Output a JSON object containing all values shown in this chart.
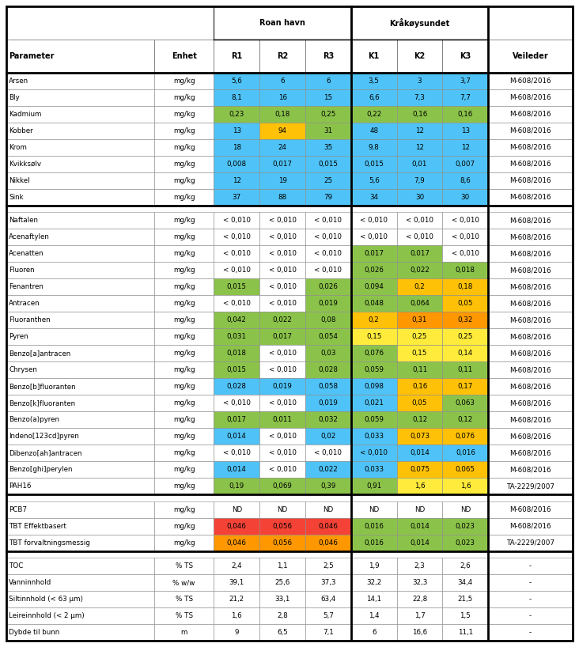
{
  "headers_sub": [
    "Parameter",
    "Enhet",
    "R1",
    "R2",
    "R3",
    "K1",
    "K2",
    "K3",
    "Veileder"
  ],
  "rows": [
    [
      "Arsen",
      "mg/kg",
      "5,6",
      "6",
      "6",
      "3,5",
      "3",
      "3,7",
      "M-608/2016"
    ],
    [
      "Bly",
      "mg/kg",
      "8,1",
      "16",
      "15",
      "6,6",
      "7,3",
      "7,7",
      "M-608/2016"
    ],
    [
      "Kadmium",
      "mg/kg",
      "0,23",
      "0,18",
      "0,25",
      "0,22",
      "0,16",
      "0,16",
      "M-608/2016"
    ],
    [
      "Kobber",
      "mg/kg",
      "13",
      "94",
      "31",
      "48",
      "12",
      "13",
      "M-608/2016"
    ],
    [
      "Krom",
      "mg/kg",
      "18",
      "24",
      "35",
      "9,8",
      "12",
      "12",
      "M-608/2016"
    ],
    [
      "Kvikksølv",
      "mg/kg",
      "0,008",
      "0,017",
      "0,015",
      "0,015",
      "0,01",
      "0,007",
      "M-608/2016"
    ],
    [
      "Nikkel",
      "mg/kg",
      "12",
      "19",
      "25",
      "5,6",
      "7,9",
      "8,6",
      "M-608/2016"
    ],
    [
      "Sink",
      "mg/kg",
      "37",
      "88",
      "79",
      "34",
      "30",
      "30",
      "M-608/2016"
    ],
    [
      "Naftalen",
      "mg/kg",
      "< 0,010",
      "< 0,010",
      "< 0,010",
      "< 0,010",
      "< 0,010",
      "< 0,010",
      "M-608/2016"
    ],
    [
      "Acenaftylen",
      "mg/kg",
      "< 0,010",
      "< 0,010",
      "< 0,010",
      "< 0,010",
      "< 0,010",
      "< 0,010",
      "M-608/2016"
    ],
    [
      "Acenatten",
      "mg/kg",
      "< 0,010",
      "< 0,010",
      "< 0,010",
      "0,017",
      "0,017",
      "< 0,010",
      "M-608/2016"
    ],
    [
      "Fluoren",
      "mg/kg",
      "< 0,010",
      "< 0,010",
      "< 0,010",
      "0,026",
      "0,022",
      "0,018",
      "M-608/2016"
    ],
    [
      "Fenantren",
      "mg/kg",
      "0,015",
      "< 0,010",
      "0,026",
      "0,094",
      "0,2",
      "0,18",
      "M-608/2016"
    ],
    [
      "Antracen",
      "mg/kg",
      "< 0,010",
      "< 0,010",
      "0,019",
      "0,048",
      "0,064",
      "0,05",
      "M-608/2016"
    ],
    [
      "Fluoranthen",
      "mg/kg",
      "0,042",
      "0,022",
      "0,08",
      "0,2",
      "0,31",
      "0,32",
      "M-608/2016"
    ],
    [
      "Pyren",
      "mg/kg",
      "0,031",
      "0,017",
      "0,054",
      "0,15",
      "0,25",
      "0,25",
      "M-608/2016"
    ],
    [
      "Benzo[a]antracen",
      "mg/kg",
      "0,018",
      "< 0,010",
      "0,03",
      "0,076",
      "0,15",
      "0,14",
      "M-608/2016"
    ],
    [
      "Chrysen",
      "mg/kg",
      "0,015",
      "< 0,010",
      "0,028",
      "0,059",
      "0,11",
      "0,11",
      "M-608/2016"
    ],
    [
      "Benzo[b]fluoranten",
      "mg/kg",
      "0,028",
      "0,019",
      "0,058",
      "0,098",
      "0,16",
      "0,17",
      "M-608/2016"
    ],
    [
      "Benzo[k]fluoranten",
      "mg/kg",
      "< 0,010",
      "< 0,010",
      "0,019",
      "0,021",
      "0,05",
      "0,063",
      "M-608/2016"
    ],
    [
      "Benzo(a)pyren",
      "mg/kg",
      "0,017",
      "0,011",
      "0,032",
      "0,059",
      "0,12",
      "0,12",
      "M-608/2016"
    ],
    [
      "Indeno[123cd]pyren",
      "mg/kg",
      "0,014",
      "< 0,010",
      "0,02",
      "0,033",
      "0,073",
      "0,076",
      "M-608/2016"
    ],
    [
      "Dibenzo[ah]antracen",
      "mg/kg",
      "< 0,010",
      "< 0,010",
      "< 0,010",
      "< 0,010",
      "0,014",
      "0,016",
      "M-608/2016"
    ],
    [
      "Benzo[ghi]perylen",
      "mg/kg",
      "0,014",
      "< 0,010",
      "0,022",
      "0,033",
      "0,075",
      "0,065",
      "M-608/2016"
    ],
    [
      "PAH16",
      "mg/kg",
      "0,19",
      "0,069",
      "0,39",
      "0,91",
      "1,6",
      "1,6",
      "TA-2229/2007"
    ],
    [
      "PCB7",
      "mg/kg",
      "ND",
      "ND",
      "ND",
      "ND",
      "ND",
      "ND",
      "M-608/2016"
    ],
    [
      "TBT Effektbasert",
      "mg/kg",
      "0,046",
      "0,056",
      "0,046",
      "0,016",
      "0,014",
      "0,023",
      "M-608/2016"
    ],
    [
      "TBT forvaltningsmessig",
      "mg/kg",
      "0,046",
      "0,056",
      "0,046",
      "0,016",
      "0,014",
      "0,023",
      "TA-2229/2007"
    ],
    [
      "TOC",
      "% TS",
      "2,4",
      "1,1",
      "2,5",
      "1,9",
      "2,3",
      "2,6",
      "-"
    ],
    [
      "Vanninnhold",
      "% w/w",
      "39,1",
      "25,6",
      "37,3",
      "32,2",
      "32,3",
      "34,4",
      "-"
    ],
    [
      "Siltinnhold (< 63 μm)",
      "% TS",
      "21,2",
      "33,1",
      "63,4",
      "14,1",
      "22,8",
      "21,5",
      "-"
    ],
    [
      "Leireinnhold (< 2 μm)",
      "% TS",
      "1,6",
      "2,8",
      "5,7",
      "1,4",
      "1,7",
      "1,5",
      "-"
    ],
    [
      "Dybde til bunn",
      "m",
      "9",
      "6,5",
      "7,1",
      "6",
      "16,6",
      "11,1",
      "-"
    ]
  ],
  "cell_colors": {
    "0_2": "#4FC3F7",
    "0_3": "#4FC3F7",
    "0_4": "#4FC3F7",
    "0_5": "#4FC3F7",
    "0_6": "#4FC3F7",
    "0_7": "#4FC3F7",
    "1_2": "#4FC3F7",
    "1_3": "#4FC3F7",
    "1_4": "#4FC3F7",
    "1_5": "#4FC3F7",
    "1_6": "#4FC3F7",
    "1_7": "#4FC3F7",
    "2_2": "#8BC34A",
    "2_3": "#8BC34A",
    "2_4": "#8BC34A",
    "2_5": "#8BC34A",
    "2_6": "#8BC34A",
    "2_7": "#8BC34A",
    "3_2": "#4FC3F7",
    "3_3": "#FFC107",
    "3_4": "#8BC34A",
    "3_5": "#4FC3F7",
    "3_6": "#4FC3F7",
    "3_7": "#4FC3F7",
    "4_2": "#4FC3F7",
    "4_3": "#4FC3F7",
    "4_4": "#4FC3F7",
    "4_5": "#4FC3F7",
    "4_6": "#4FC3F7",
    "4_7": "#4FC3F7",
    "5_2": "#4FC3F7",
    "5_3": "#4FC3F7",
    "5_4": "#4FC3F7",
    "5_5": "#4FC3F7",
    "5_6": "#4FC3F7",
    "5_7": "#4FC3F7",
    "6_2": "#4FC3F7",
    "6_3": "#4FC3F7",
    "6_4": "#4FC3F7",
    "6_5": "#4FC3F7",
    "6_6": "#4FC3F7",
    "6_7": "#4FC3F7",
    "7_2": "#4FC3F7",
    "7_3": "#4FC3F7",
    "7_4": "#4FC3F7",
    "7_5": "#4FC3F7",
    "7_6": "#4FC3F7",
    "7_7": "#4FC3F7",
    "10_5": "#8BC34A",
    "10_6": "#8BC34A",
    "11_5": "#8BC34A",
    "11_6": "#8BC34A",
    "11_7": "#8BC34A",
    "12_2": "#8BC34A",
    "12_4": "#8BC34A",
    "12_5": "#8BC34A",
    "12_6": "#FFC107",
    "12_7": "#FFC107",
    "13_4": "#8BC34A",
    "13_5": "#8BC34A",
    "13_6": "#8BC34A",
    "13_7": "#FFC107",
    "14_2": "#8BC34A",
    "14_3": "#8BC34A",
    "14_4": "#8BC34A",
    "14_5": "#FFC107",
    "14_6": "#FF9800",
    "14_7": "#FF9800",
    "15_2": "#8BC34A",
    "15_3": "#8BC34A",
    "15_4": "#8BC34A",
    "15_5": "#FFEB3B",
    "15_6": "#FFEB3B",
    "15_7": "#FFEB3B",
    "16_2": "#8BC34A",
    "16_4": "#8BC34A",
    "16_5": "#8BC34A",
    "16_6": "#FFEB3B",
    "16_7": "#FFEB3B",
    "17_2": "#8BC34A",
    "17_4": "#8BC34A",
    "17_5": "#8BC34A",
    "17_6": "#8BC34A",
    "17_7": "#8BC34A",
    "18_2": "#4FC3F7",
    "18_3": "#4FC3F7",
    "18_4": "#4FC3F7",
    "18_5": "#4FC3F7",
    "18_6": "#FFC107",
    "18_7": "#FFC107",
    "19_4": "#4FC3F7",
    "19_5": "#4FC3F7",
    "19_6": "#FFC107",
    "19_7": "#8BC34A",
    "20_2": "#8BC34A",
    "20_3": "#8BC34A",
    "20_4": "#8BC34A",
    "20_5": "#8BC34A",
    "20_6": "#8BC34A",
    "20_7": "#8BC34A",
    "21_2": "#4FC3F7",
    "21_4": "#4FC3F7",
    "21_5": "#4FC3F7",
    "21_6": "#FFC107",
    "21_7": "#FFC107",
    "22_5": "#4FC3F7",
    "22_6": "#4FC3F7",
    "22_7": "#4FC3F7",
    "23_2": "#4FC3F7",
    "23_4": "#4FC3F7",
    "23_5": "#4FC3F7",
    "23_6": "#FFC107",
    "23_7": "#FFC107",
    "24_2": "#8BC34A",
    "24_3": "#8BC34A",
    "24_4": "#8BC34A",
    "24_5": "#8BC34A",
    "24_6": "#FFEB3B",
    "24_7": "#FFEB3B",
    "26_2": "#F44336",
    "26_3": "#F44336",
    "26_4": "#F44336",
    "26_5": "#8BC34A",
    "26_6": "#8BC34A",
    "26_7": "#8BC34A",
    "27_2": "#FF9800",
    "27_3": "#FF9800",
    "27_4": "#FF9800",
    "27_5": "#8BC34A",
    "27_6": "#8BC34A",
    "27_7": "#8BC34A"
  },
  "separator_rows": [
    8,
    25,
    28
  ],
  "col_widths_rel": [
    2.1,
    0.85,
    0.65,
    0.65,
    0.65,
    0.65,
    0.65,
    0.65,
    1.2
  ],
  "fig_width": 7.32,
  "fig_height": 8.18,
  "dpi": 100
}
